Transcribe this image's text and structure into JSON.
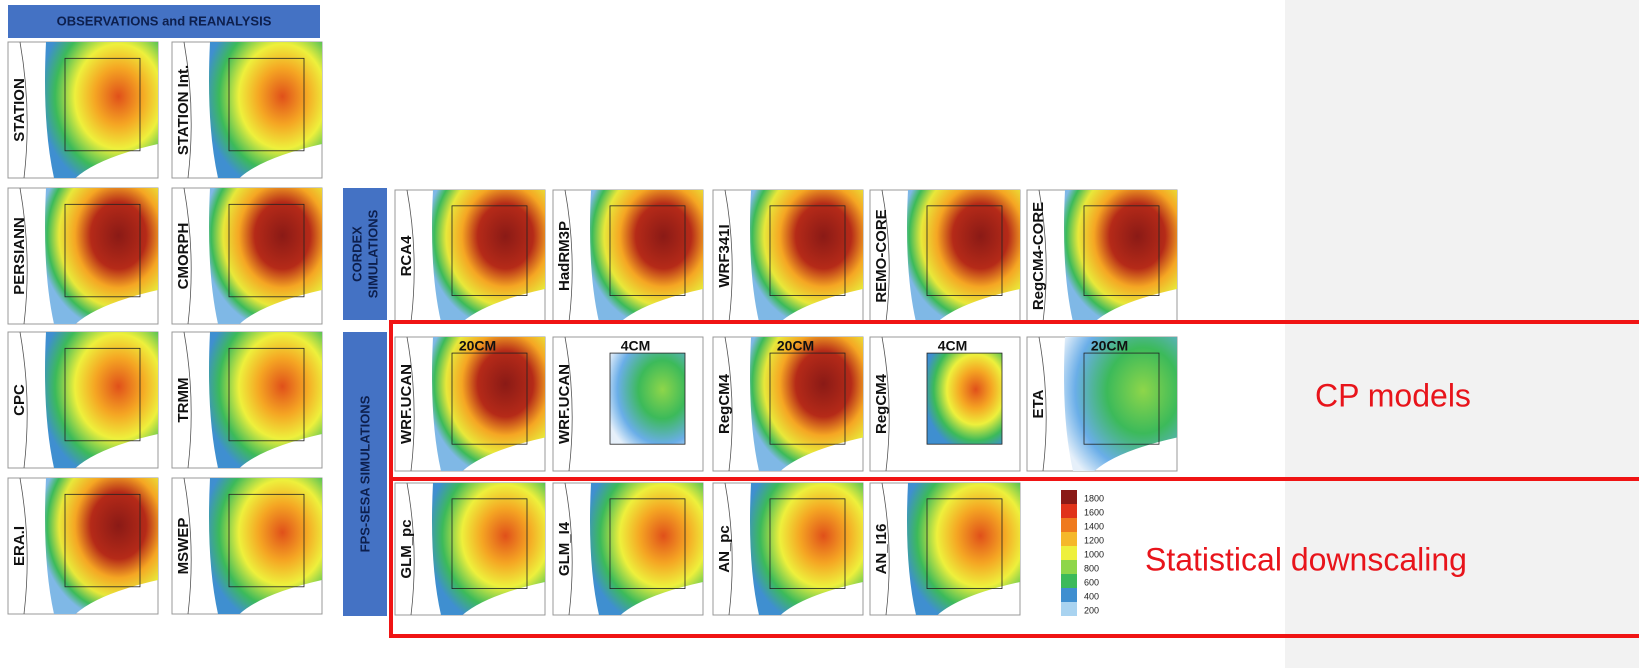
{
  "header": {
    "title": "OBSERVATIONS and REANALYSIS"
  },
  "observations": [
    "STATION",
    "STATION Int.",
    "PERSIANN",
    "CMORPH",
    "CPC",
    "TRMM",
    "ERA.I",
    "MSWEP"
  ],
  "cordex": {
    "title": [
      "CORDEX",
      "SIMULATIONS"
    ],
    "panels": [
      "RCA4",
      "HadRM3P",
      "WRF341I",
      "REMO-CORE",
      "RegCM4-CORE"
    ]
  },
  "fps_sesa": {
    "title": "FPS-SESA SIMULATIONS",
    "cp_panels": [
      {
        "label": "WRF.UCAN",
        "resolution": "20CM"
      },
      {
        "label": "WRF.UCAN",
        "resolution": "4CM"
      },
      {
        "label": "RegCM4",
        "resolution": "20CM"
      },
      {
        "label": "RegCM4",
        "resolution": "4CM"
      },
      {
        "label": "ETA",
        "resolution": "20CM"
      }
    ],
    "sd_panels": [
      "GLM_pc",
      "GLM_I4",
      "AN_pc",
      "AN_I16"
    ]
  },
  "annotations": {
    "cp": "CP models",
    "sd": "Statistical downscaling"
  },
  "colorbar": {
    "ticks": [
      200,
      400,
      600,
      800,
      1000,
      1200,
      1400,
      1600,
      1800
    ],
    "colors": [
      "#a9d3f0",
      "#3f8fd0",
      "#3cba5a",
      "#8ed64a",
      "#eef03c",
      "#f5b82a",
      "#ef7a1e",
      "#e0331a",
      "#8a1a16"
    ]
  }
}
